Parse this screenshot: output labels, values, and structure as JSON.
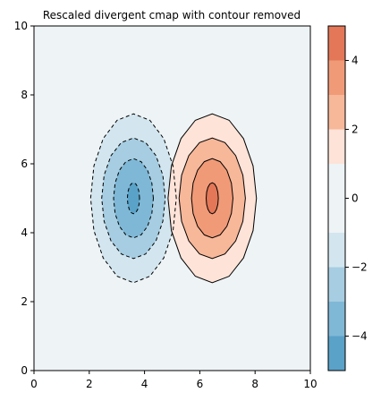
{
  "chart_data": {
    "type": "contour",
    "title": "Rescaled divergent cmap with contour removed",
    "xlabel": "",
    "ylabel": "",
    "xlim": [
      0,
      10
    ],
    "ylim": [
      0,
      10
    ],
    "x_ticks": [
      0,
      2,
      4,
      6,
      8,
      10
    ],
    "y_ticks": [
      0,
      2,
      4,
      6,
      8,
      10
    ],
    "background_fill": "#eef3f6",
    "grid": false,
    "colorbar": {
      "range": [
        -5,
        5
      ],
      "ticks": [
        -4,
        -2,
        0,
        2,
        4
      ],
      "tick_labels": [
        "−4",
        "−2",
        "0",
        "2",
        "4"
      ],
      "bands": [
        {
          "from": -5,
          "to": -4,
          "color": "#5aa2c8"
        },
        {
          "from": -4,
          "to": -3,
          "color": "#7fb8d6"
        },
        {
          "from": -3,
          "to": -2,
          "color": "#a6cde1"
        },
        {
          "from": -2,
          "to": -1,
          "color": "#d3e6ef"
        },
        {
          "from": -1,
          "to": 0,
          "color": "#eef3f6"
        },
        {
          "from": 0,
          "to": 1,
          "color": "#eef3f6"
        },
        {
          "from": 1,
          "to": 2,
          "color": "#fde3d8"
        },
        {
          "from": 2,
          "to": 3,
          "color": "#f7b799"
        },
        {
          "from": 3,
          "to": 4,
          "color": "#f09a77"
        },
        {
          "from": 4,
          "to": 5,
          "color": "#e37757"
        }
      ]
    },
    "contours": [
      {
        "name": "negative-1",
        "center": [
          3.6,
          5.0
        ],
        "rx": 1.55,
        "ry": 2.45,
        "fill": "#d3e6ef",
        "dashed": true
      },
      {
        "name": "negative-2",
        "center": [
          3.6,
          5.0
        ],
        "rx": 1.15,
        "ry": 1.75,
        "fill": "#a6cde1",
        "dashed": true
      },
      {
        "name": "negative-3",
        "center": [
          3.6,
          5.0
        ],
        "rx": 0.72,
        "ry": 1.15,
        "fill": "#7fb8d6",
        "dashed": true
      },
      {
        "name": "negative-4",
        "center": [
          3.6,
          5.0
        ],
        "rx": 0.22,
        "ry": 0.45,
        "fill": "#5aa2c8",
        "dashed": true
      },
      {
        "name": "positive-1",
        "center": [
          6.45,
          5.0
        ],
        "rx": 1.6,
        "ry": 2.45,
        "fill": "#fde3d8",
        "dashed": false
      },
      {
        "name": "positive-2",
        "center": [
          6.45,
          5.0
        ],
        "rx": 1.2,
        "ry": 1.75,
        "fill": "#f7b799",
        "dashed": false
      },
      {
        "name": "positive-3",
        "center": [
          6.45,
          5.0
        ],
        "rx": 0.75,
        "ry": 1.15,
        "fill": "#f09a77",
        "dashed": false
      },
      {
        "name": "positive-4",
        "center": [
          6.45,
          5.0
        ],
        "rx": 0.22,
        "ry": 0.45,
        "fill": "#e37757",
        "dashed": false
      }
    ]
  }
}
